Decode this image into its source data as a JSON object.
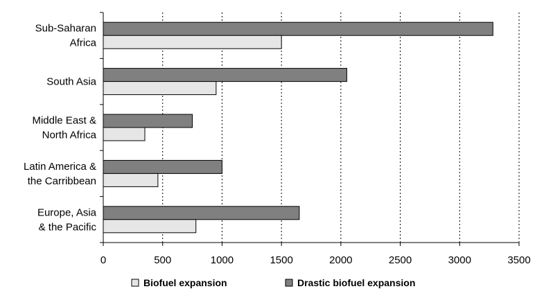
{
  "chart_data": {
    "type": "bar",
    "orientation": "horizontal",
    "categories": [
      [
        "Sub-Saharan",
        "Africa"
      ],
      [
        "South Asia"
      ],
      [
        "Middle East &",
        "North Africa"
      ],
      [
        "Latin America &",
        "the Carribbean"
      ],
      [
        "Europe, Asia",
        "& the Pacific"
      ]
    ],
    "series": [
      {
        "name": "Biofuel expansion",
        "color": "#e6e6e6",
        "values": [
          1500,
          950,
          350,
          460,
          780
        ]
      },
      {
        "name": "Drastic biofuel expansion",
        "color": "#808080",
        "values": [
          3280,
          2050,
          750,
          1000,
          1650
        ]
      }
    ],
    "series_order_within_group": [
      "Drastic biofuel expansion",
      "Biofuel expansion"
    ],
    "xlim": [
      0,
      3500
    ],
    "x_ticks": [
      0,
      500,
      1000,
      1500,
      2000,
      2500,
      3000,
      3500
    ],
    "x_tick_labels": [
      "0",
      "500",
      "1000",
      "1500",
      "2000",
      "2500",
      "3000",
      "3500"
    ],
    "grid": "vertical dotted",
    "legend_position": "bottom"
  }
}
